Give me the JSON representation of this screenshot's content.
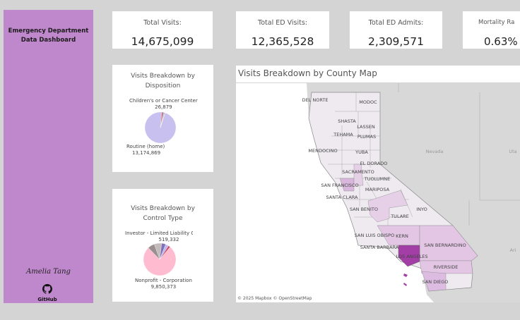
{
  "sidebar": {
    "title_line1": "Emergency Department",
    "title_line2": "Data Dashboard",
    "author": "Amelia Tang",
    "github_label": "GitHub"
  },
  "kpis": [
    {
      "label": "Total Visits:",
      "value": "14,675,099"
    },
    {
      "label": "Total ED Visits:",
      "value": "12,365,528"
    },
    {
      "label": "Total ED Admits:",
      "value": "2,309,571"
    },
    {
      "label": "Mortality Ra",
      "value": "0.63%"
    }
  ],
  "chart_data": [
    {
      "type": "pie",
      "title_line1": "Visits Breakdown by",
      "title_line2": "Disposition",
      "slices": [
        {
          "name": "Routine (home)",
          "value": 13174869,
          "label": "13,174,869",
          "color": "#c8c0ee"
        },
        {
          "name": "Children's or Cancer Center",
          "value": 26879,
          "label": "26,879",
          "color": "#c0a0a8"
        },
        {
          "name": "",
          "value": 200000,
          "color": "#c84a60"
        },
        {
          "name": "",
          "value": 90000,
          "color": "#7a70b0"
        },
        {
          "name": "",
          "value": 150000,
          "color": "#b8b0b0"
        }
      ]
    },
    {
      "type": "pie",
      "title_line1": "Visits Breakdown by",
      "title_line2": "Control Type",
      "slices": [
        {
          "name": "Nonprofit - Corporation",
          "value": 9850373,
          "label": "9,850,373",
          "color": "#ffbcd0"
        },
        {
          "name": "",
          "value": 900000,
          "color": "#9a9090"
        },
        {
          "name": "",
          "value": 950000,
          "color": "#c4bcbc"
        },
        {
          "name": "Investor - Limited Liability Co",
          "value": 519332,
          "label": "519,332",
          "color": "#8070b8"
        },
        {
          "name": "",
          "value": 400000,
          "color": "#c0b8f0"
        },
        {
          "name": "",
          "value": 250000,
          "color": "#c84a60"
        }
      ]
    }
  ],
  "map": {
    "title": "Visits Breakdown by County Map",
    "attribution": "© 2025 Mapbox  © OpenStreetMap",
    "states": [
      "Nevada",
      "Uta",
      "Ari"
    ],
    "counties": [
      "DEL NORTE",
      "MODOC",
      "SHASTA",
      "LASSEN",
      "TEHAMA",
      "PLUMAS",
      "MENDOCINO",
      "YUBA",
      "EL DORADO",
      "SACRAMENTO",
      "TUOLUMNE",
      "SAN FRANCISCO",
      "MARIPOSA",
      "SANTA CLARA",
      "SAN BENITO",
      "INYO",
      "TULARE",
      "SAN LUIS OBISPO",
      "KERN",
      "SAN BERNARDINO",
      "SANTA BARBARA",
      "LOS ANGELES",
      "RIVERSIDE",
      "SAN DIEGO"
    ],
    "colors": {
      "low": "#eeeaf0",
      "mid": "#e2c6e4",
      "high": "#a23ea6"
    }
  }
}
